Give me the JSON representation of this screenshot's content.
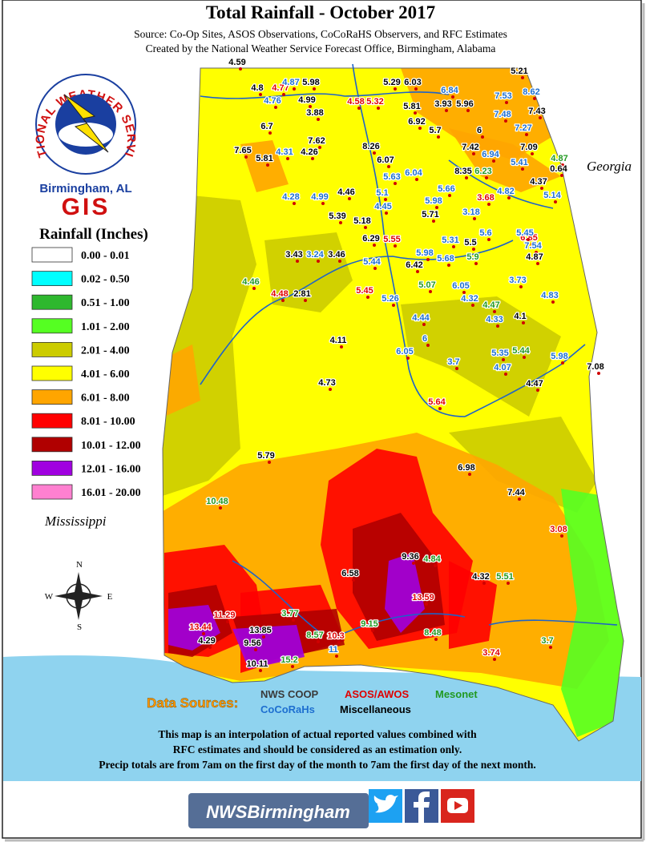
{
  "title": "Total Rainfall - October 2017",
  "subtitle_lines": [
    "Source: Co-Op Sites, ASOS Observations, CoCoRaHS Observers, and RFC Estimates",
    "Created by the National Weather Service Forecast Office, Birmingham, Alabama"
  ],
  "logo": {
    "ring_text": "NATIONAL WEATHER SERVICE",
    "office": "Birmingham, AL",
    "unit": "GIS"
  },
  "legend": {
    "title": "Rainfall (Inches)",
    "classes": [
      {
        "label": "0.00 - 0.01",
        "color": "#ffffff"
      },
      {
        "label": "0.02 - 0.50",
        "color": "#00ffff"
      },
      {
        "label": "0.51 - 1.00",
        "color": "#2eb82e"
      },
      {
        "label": "1.01 - 2.00",
        "color": "#55ff22"
      },
      {
        "label": "2.01 - 4.00",
        "color": "#cccc00"
      },
      {
        "label": "4.01 - 6.00",
        "color": "#ffff00"
      },
      {
        "label": "6.01 - 8.00",
        "color": "#ffa500"
      },
      {
        "label": "8.01 - 10.00",
        "color": "#ff0000"
      },
      {
        "label": "10.01 - 12.00",
        "color": "#b00000"
      },
      {
        "label": "12.01 - 16.00",
        "color": "#a000e0"
      },
      {
        "label": "16.01 - 20.00",
        "color": "#ff80d0"
      }
    ]
  },
  "state_labels": {
    "west": "Mississippi",
    "east": "Georgia"
  },
  "compass": {
    "north": "N",
    "east": "E",
    "south": "S",
    "west": "W"
  },
  "data_sources": {
    "title": "Data Sources:",
    "sources": [
      {
        "name": "NWS COOP",
        "color": "#3a3a3a"
      },
      {
        "name": "ASOS/AWOS",
        "color": "#e00000",
        "stations": [
          4.77,
          4.58,
          5.32,
          3.68,
          5.55,
          6.85,
          4.48,
          5.45,
          5.64,
          3.08,
          13.59,
          13.44,
          11.29,
          10.3,
          3.74
        ]
      },
      {
        "name": "Mesonet",
        "color": "#229922",
        "stations": [
          4.87,
          6.23,
          5.9,
          4.46,
          5.07,
          4.47,
          5.44,
          10.48,
          4.84,
          5.51,
          3.77,
          8.57,
          9.15,
          8.48,
          3.7,
          15.2
        ]
      },
      {
        "name": "CoCoRaHs",
        "color": "#1e6fd0",
        "stations": [
          6.84,
          4.87,
          4.76,
          7.53,
          8.62,
          7.48,
          7.27,
          6.94,
          5.41,
          5.63,
          6.04,
          4.31,
          4.28,
          4.99,
          5.1,
          4.45,
          5.66,
          5.98,
          4.82,
          5.14,
          3.18,
          5.31,
          5.6,
          5.45,
          7.54,
          3.24,
          5.44,
          5.98,
          5.68,
          3.73,
          6.05,
          4.32,
          5.26,
          4.44,
          4.33,
          4.83,
          6,
          6.05,
          3.7,
          5.35,
          4.07,
          5.98,
          11
        ]
      },
      {
        "name": "Miscellaneous",
        "color": "#000000",
        "stations": [
          4.59,
          4.8,
          5.98,
          4.99,
          3.88,
          5.29,
          6.03,
          5.81,
          3.93,
          5.96,
          5.21,
          7.43,
          6.7,
          7.62,
          7.65,
          4.26,
          5.81,
          6.92,
          5.7,
          8.26,
          6.07,
          7.42,
          7.09,
          8.35,
          0.64,
          4.37,
          4.46,
          5.39,
          5.18,
          5.71,
          6.29,
          5.5,
          3.43,
          3.46,
          4.87,
          6.42,
          2.81,
          4.1,
          4.11,
          4.73,
          7.08,
          4.47,
          5.79,
          6.98,
          7.44,
          9.36,
          6.58,
          4.32,
          4.29,
          13.85,
          9.56,
          10.11,
          6
        ]
      }
    ]
  },
  "disclaimer": [
    "This map is an interpolation of actual reported values combined with",
    "RFC estimates and should be considered as an estimation only.",
    "Precip totals are from 7am on the first day of the month to 7am the first day of the next month."
  ],
  "footer": "NWSBirmingham"
}
